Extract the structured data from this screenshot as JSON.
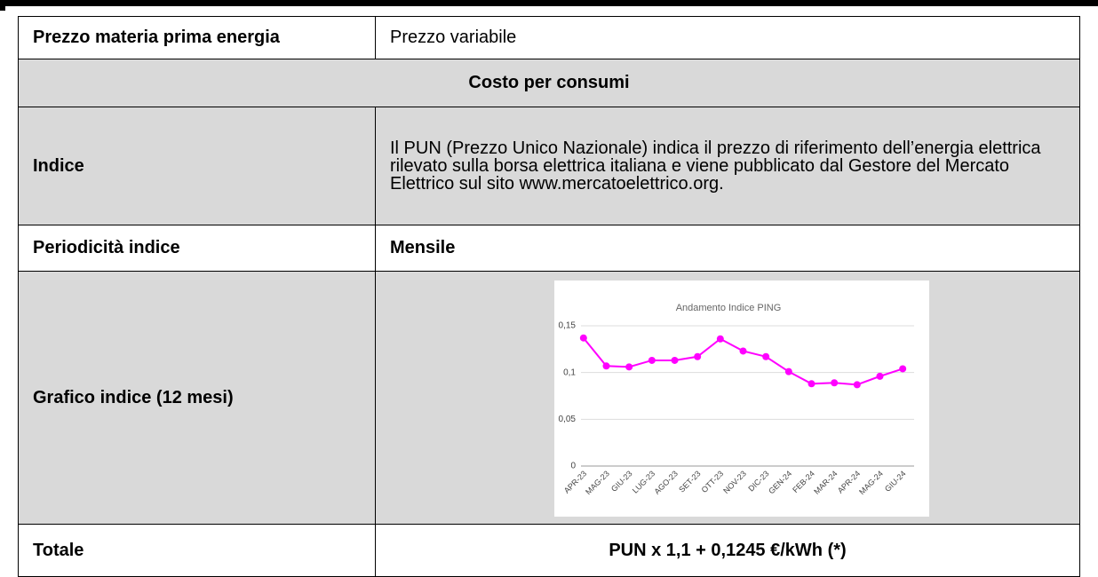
{
  "table": {
    "rows": [
      [
        "Prezzo materia prima energia",
        "Prezzo variabile"
      ],
      [
        "Costo per consumi"
      ],
      [
        "Indice",
        "Il PUN (Prezzo Unico Nazionale) indica il prezzo di riferimento dell’energia elettrica rilevato sulla borsa elettrica italiana e viene pubblicato dal Gestore del Mercato Elettrico sul sito www.mercatoelettrico.org."
      ],
      [
        "Periodicità indice",
        "Mensile"
      ],
      [
        "Grafico indice (12 mesi)"
      ],
      [
        "Totale",
        "PUN x 1,1 + 0,1245 €/kWh (*)"
      ]
    ]
  },
  "chart_data": {
    "type": "line",
    "title": "Andamento Indice PING",
    "categories": [
      "APR-23",
      "MAG-23",
      "GIU-23",
      "LUG-23",
      "AGO-23",
      "SET-23",
      "OTT-23",
      "NOV-23",
      "DIC-23",
      "GEN-24",
      "FEB-24",
      "MAR-24",
      "APR-24",
      "MAG-24",
      "GIU-24"
    ],
    "values": [
      0.137,
      0.107,
      0.106,
      0.113,
      0.113,
      0.117,
      0.136,
      0.123,
      0.117,
      0.101,
      0.088,
      0.089,
      0.087,
      0.096,
      0.104
    ],
    "color": "#ff00ff",
    "ylim": [
      0,
      0.15
    ],
    "yticks": [
      0,
      {
        "value": 0.05,
        "label": "0,05"
      },
      {
        "value": 0.1,
        "label": "0,1"
      },
      {
        "value": 0.15,
        "label": "0,15"
      }
    ],
    "grid": true
  }
}
